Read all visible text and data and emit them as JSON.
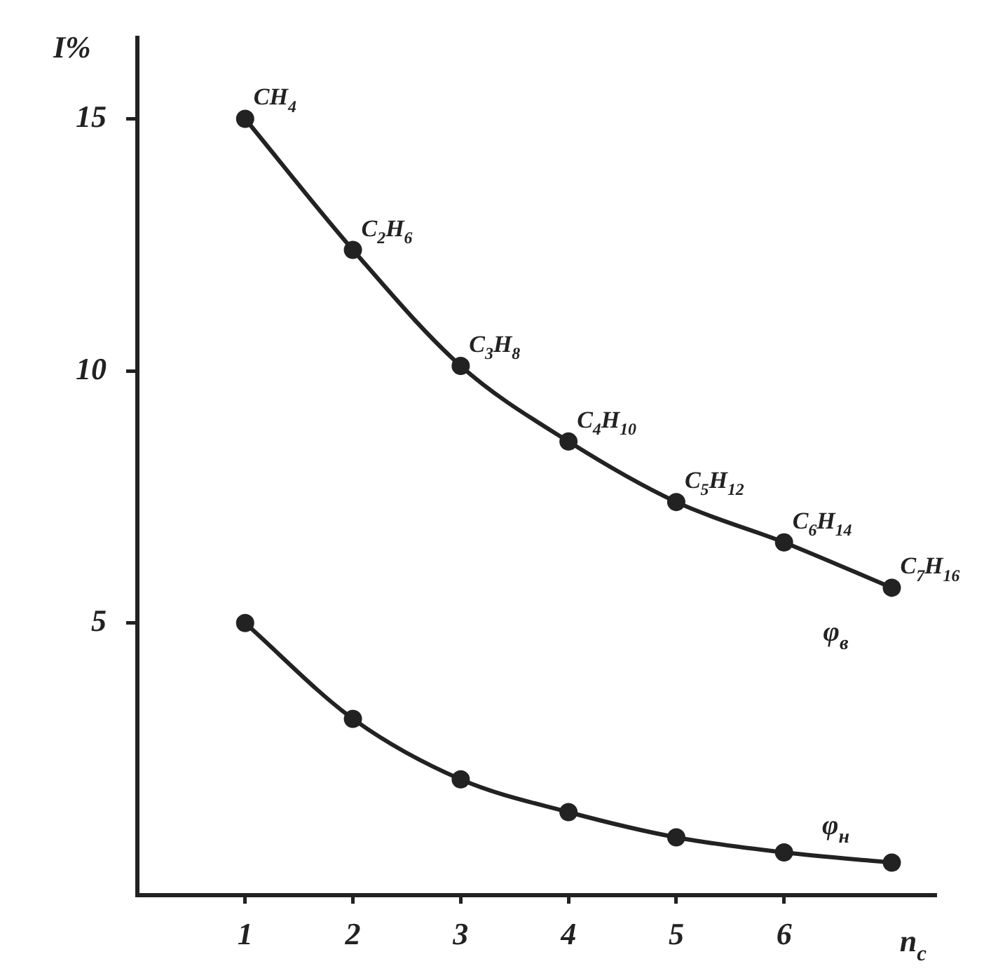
{
  "chart_data": {
    "type": "line",
    "ylabel": "I%",
    "xlabel": "n$_{c}$",
    "x": [
      1,
      2,
      3,
      4,
      5,
      6,
      7
    ],
    "xlim": [
      0,
      7.4
    ],
    "xticks": [
      1,
      2,
      3,
      4,
      5,
      6
    ],
    "ylim": [
      -0.4,
      16.6
    ],
    "yticks": [
      5,
      10,
      15
    ],
    "grid": false,
    "legend": false,
    "marker": "circle",
    "line_style": "solid",
    "series": [
      {
        "name": "φ$_{в}$",
        "color": "#222222",
        "values": [
          15,
          12.4,
          10.1,
          8.6,
          7.4,
          6.6,
          5.7
        ]
      },
      {
        "name": "φ$_{н}$",
        "color": "#222222",
        "values": [
          5,
          3.1,
          1.9,
          1.25,
          0.75,
          0.45,
          0.25
        ]
      }
    ],
    "annotations": [
      {
        "text": "CH$_{4}$",
        "x": 1,
        "y": 15
      },
      {
        "text": "C$_{2}$H$_{6}$",
        "x": 2,
        "y": 12.4
      },
      {
        "text": "C$_{3}$H$_{8}$",
        "x": 3,
        "y": 10.1
      },
      {
        "text": "C$_{4}$H$_{10}$",
        "x": 4,
        "y": 8.6
      },
      {
        "text": "C$_{5}$H$_{12}$",
        "x": 5,
        "y": 7.4
      },
      {
        "text": "C$_{6}$H$_{14}$",
        "x": 6,
        "y": 6.6
      },
      {
        "text": "C$_{7}$H$_{16}$",
        "x": 7,
        "y": 5.7
      }
    ]
  }
}
